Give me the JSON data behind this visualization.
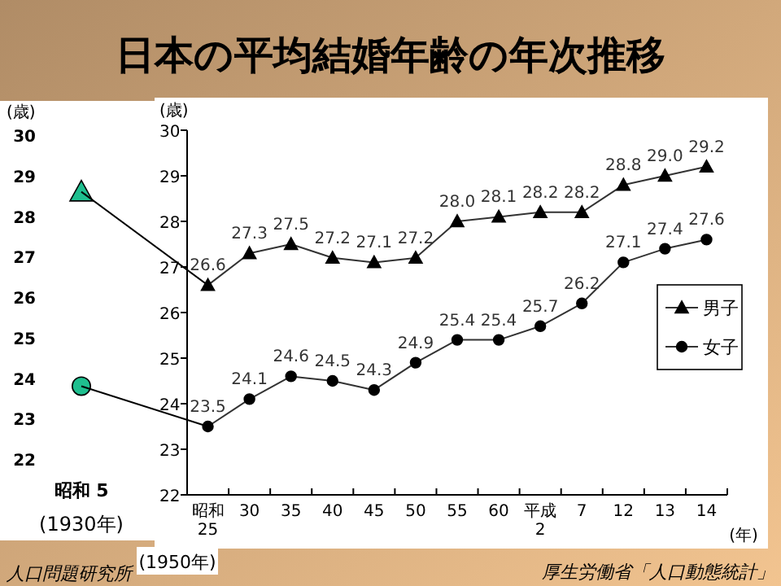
{
  "chart_data": [
    {
      "type": "scatter",
      "categories": [
        "昭和 5"
      ],
      "ylabel": "(歳)",
      "ylim": [
        22,
        30
      ],
      "yticks": [
        22,
        23,
        24,
        25,
        26,
        27,
        28,
        29,
        30
      ],
      "annotations": [
        "(1930年)"
      ],
      "series": [
        {
          "color": "#1fbf8f",
          "marker": "triangle",
          "values": [
            28.6
          ]
        },
        {
          "color": "#1fbf8f",
          "marker": "circle",
          "values": [
            23.8
          ]
        }
      ]
    },
    {
      "type": "line",
      "title": "日本の平均結婚年齢の年次推移",
      "categories": [
        "昭和\n25",
        "30",
        "35",
        "40",
        "45",
        "50",
        "55",
        "60",
        "平成\n2",
        "7",
        "12",
        "13",
        "14"
      ],
      "xlabel": "(年)",
      "ylabel": "(歳)",
      "ylim": [
        22,
        30
      ],
      "yticks": [
        22,
        23,
        24,
        25,
        26,
        27,
        28,
        29,
        30
      ],
      "legend": "right",
      "line_style": "solid",
      "annotations": [
        "(1950年)",
        "人口問題研究所",
        "厚生労働省「人口動態統計」"
      ],
      "series": [
        {
          "name": "男子",
          "color": "#333333",
          "marker": "triangle",
          "values": [
            26.6,
            27.3,
            27.5,
            27.2,
            27.1,
            27.2,
            28.0,
            28.1,
            28.2,
            28.2,
            28.8,
            29.0,
            29.2
          ],
          "value_labels": [
            "26.6",
            "27.3",
            "27.5",
            "27.2",
            "27.1",
            "27.2",
            "28.0",
            "28.1",
            "28.2",
            "28.2",
            "28.8",
            "29.0",
            "29.2"
          ]
        },
        {
          "name": "女子",
          "color": "#333333",
          "marker": "circle",
          "values": [
            23.5,
            24.1,
            24.6,
            24.5,
            24.3,
            24.9,
            25.4,
            25.4,
            25.7,
            26.2,
            27.1,
            27.4,
            27.6
          ],
          "value_labels": [
            "23.5",
            "24.1",
            "24.6",
            "24.5",
            "24.3",
            "24.9",
            "25.4",
            "25.4",
            "25.7",
            "26.2",
            "27.1",
            "27.4",
            "27.6"
          ]
        }
      ]
    }
  ]
}
